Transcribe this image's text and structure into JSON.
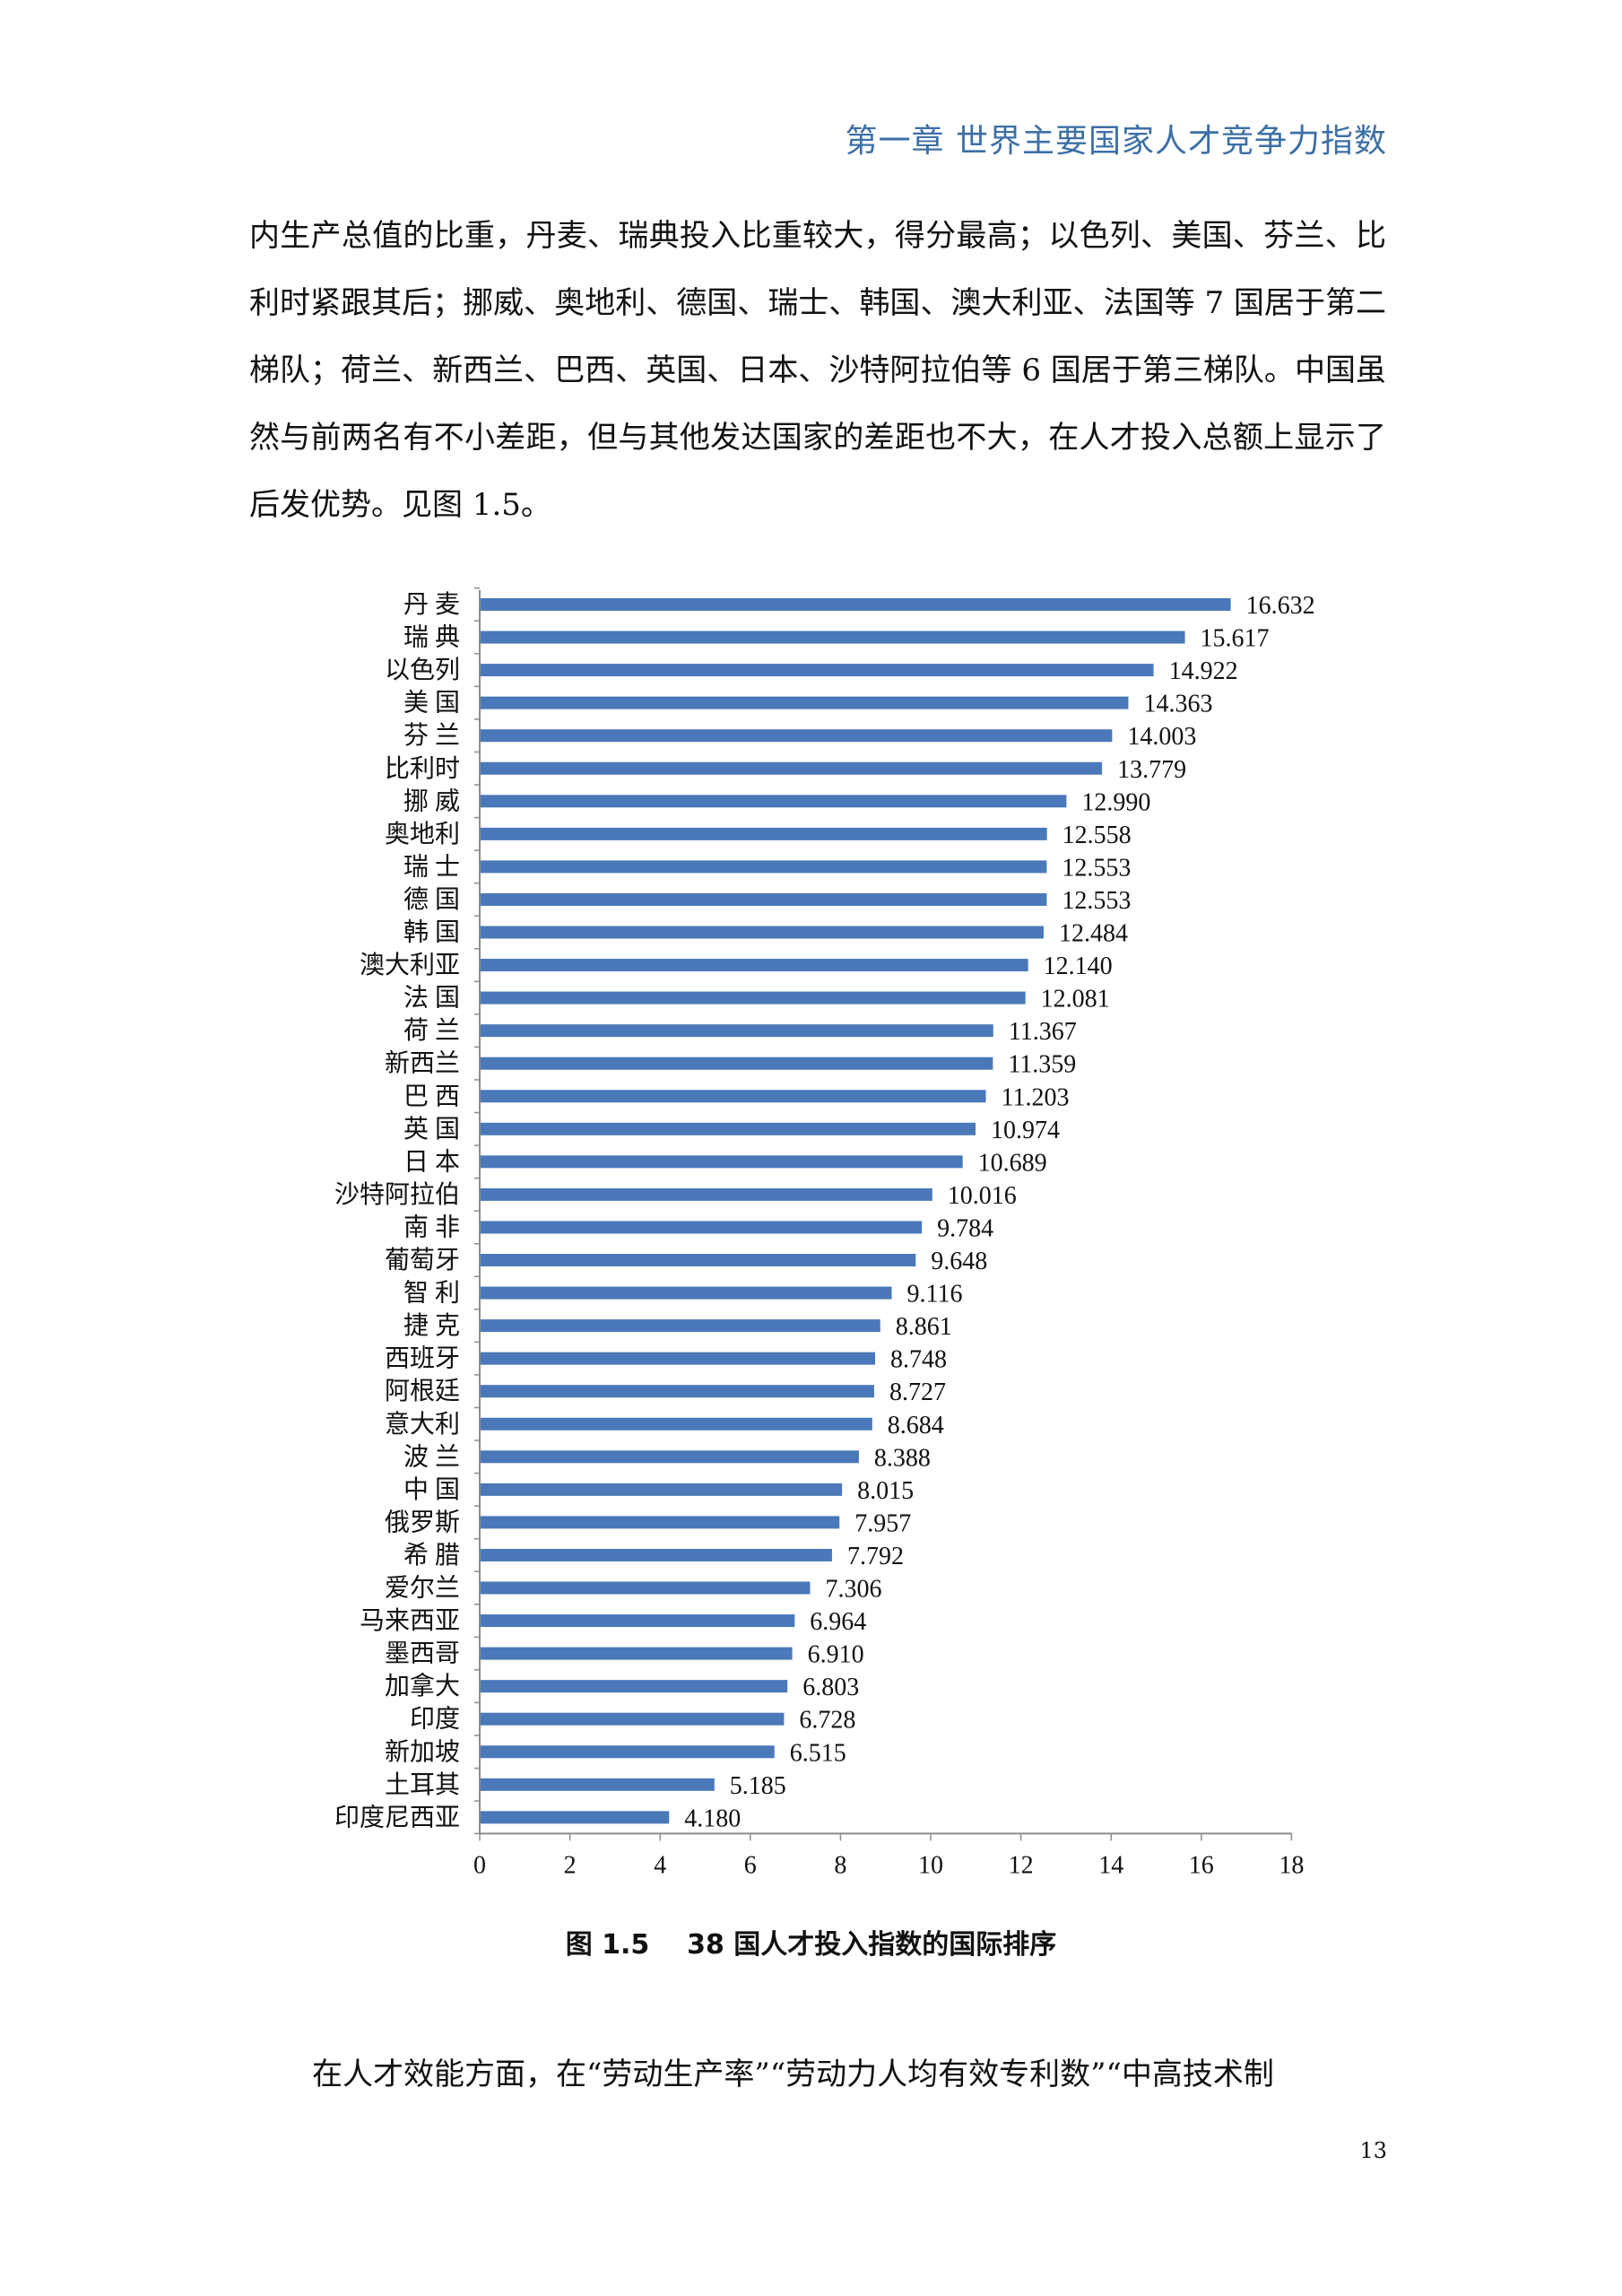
{
  "header": {
    "chapter_title": "第一章  世界主要国家人才竞争力指数"
  },
  "paragraph_1": "内生产总值的比重，丹麦、瑞典投入比重较大，得分最高；以色列、美国、芬兰、比利时紧跟其后；挪威、奥地利、德国、瑞士、韩国、澳大利亚、法国等 7 国居于第二梯队；荷兰、新西兰、巴西、英国、日本、沙特阿拉伯等 6 国居于第三梯队。中国虽然与前两名有不小差距，但与其他发达国家的差距也不大，在人才投入总额上显示了后发优势。见图 1.5。",
  "figure_caption": "图 1.5    38 国人才投入指数的国际排序",
  "paragraph_2": "在人才效能方面，在“劳动生产率”“劳动力人均有效专利数”“中高技术制",
  "page_number": "13",
  "chart_data": {
    "type": "bar",
    "orientation": "horizontal",
    "categories": [
      "丹 麦",
      "瑞 典",
      "以色列",
      "美 国",
      "芬 兰",
      "比利时",
      "挪 威",
      "奥地利",
      "瑞 士",
      "德 国",
      "韩 国",
      "澳大利亚",
      "法 国",
      "荷 兰",
      "新西兰",
      "巴 西",
      "英 国",
      "日 本",
      "沙特阿拉伯",
      "南 非",
      "葡萄牙",
      "智 利",
      "捷 克",
      "西班牙",
      "阿根廷",
      "意大利",
      "波 兰",
      "中 国",
      "俄罗斯",
      "希 腊",
      "爱尔兰",
      "马来西亚",
      "墨西哥",
      "加拿大",
      "印度",
      "新加坡",
      "土耳其",
      "印度尼西亚"
    ],
    "values": [
      16.632,
      15.617,
      14.922,
      14.363,
      14.003,
      13.779,
      12.99,
      12.558,
      12.553,
      12.553,
      12.484,
      12.14,
      12.081,
      11.367,
      11.359,
      11.203,
      10.974,
      10.689,
      10.016,
      9.784,
      9.648,
      9.116,
      8.861,
      8.748,
      8.727,
      8.684,
      8.388,
      8.015,
      7.957,
      7.792,
      7.306,
      6.964,
      6.91,
      6.803,
      6.728,
      6.515,
      5.185,
      4.18
    ],
    "value_labels": [
      "16.632",
      "15.617",
      "14.922",
      "14.363",
      "14.003",
      "13.779",
      "12.990",
      "12.558",
      "12.553",
      "12.553",
      "12.484",
      "12.140",
      "12.081",
      "11.367",
      "11.359",
      "11.203",
      "10.974",
      "10.689",
      "10.016",
      "9.784",
      "9.648",
      "9.116",
      "8.861",
      "8.748",
      "8.727",
      "8.684",
      "8.388",
      "8.015",
      "7.957",
      "7.792",
      "7.306",
      "6.964",
      "6.910",
      "6.803",
      "6.728",
      "6.515",
      "5.185",
      "4.180"
    ],
    "xlim": [
      0,
      18
    ],
    "xticks": [
      "0",
      "2",
      "4",
      "6",
      "8",
      "10",
      "12",
      "14",
      "16",
      "18"
    ],
    "bar_color": "#4a78b8",
    "grid": false,
    "legend": "none"
  }
}
